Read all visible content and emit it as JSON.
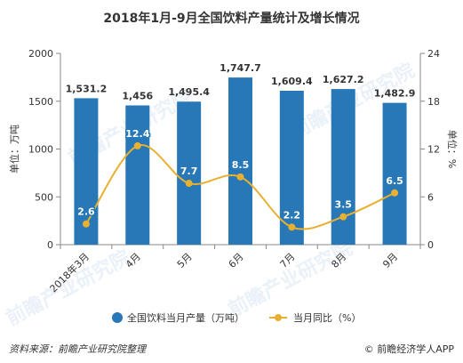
{
  "title": "2018年1月-9月全国饮料产量统计及增长情况",
  "source": "资料来源：前瞻产业研究院整理",
  "brand": "前瞻经济学人APP",
  "watermark": "前瞻产业研究院",
  "colors": {
    "bar": "#2878b8",
    "line": "#e8b030",
    "axis": "#888888",
    "grid": "#e6e6e6"
  },
  "chart_data": {
    "type": "bar+line",
    "categories": [
      "2018年3月",
      "4月",
      "5月",
      "6月",
      "7月",
      "8月",
      "9月"
    ],
    "series": [
      {
        "name": "全国饮料当月产量（万吨）",
        "type": "bar",
        "axis": "left",
        "values": [
          1531.2,
          1456,
          1495.4,
          1747.7,
          1609.4,
          1627.2,
          1482.9
        ],
        "labels": [
          "1,531.2",
          "1,456",
          "1,495.4",
          "1,747.7",
          "1,609.4",
          "1,627.2",
          "1,482.9"
        ]
      },
      {
        "name": "当月同比（%）",
        "type": "line",
        "axis": "right",
        "values": [
          2.6,
          12.4,
          7.7,
          8.5,
          2.2,
          3.5,
          6.5
        ],
        "labels": [
          "2.6",
          "12.4",
          "7.7",
          "8.5",
          "2.2",
          "3.5",
          "6.5"
        ]
      }
    ],
    "ylabel_left": "单位：万吨",
    "ylabel_right": "单位：%",
    "ylim_left": [
      0,
      2000
    ],
    "yticks_left": [
      0,
      500,
      1000,
      1500,
      2000
    ],
    "ylim_right": [
      0,
      24
    ],
    "yticks_right": [
      0,
      6,
      12,
      18,
      24
    ],
    "grid": false,
    "legend": "bottom-center"
  }
}
